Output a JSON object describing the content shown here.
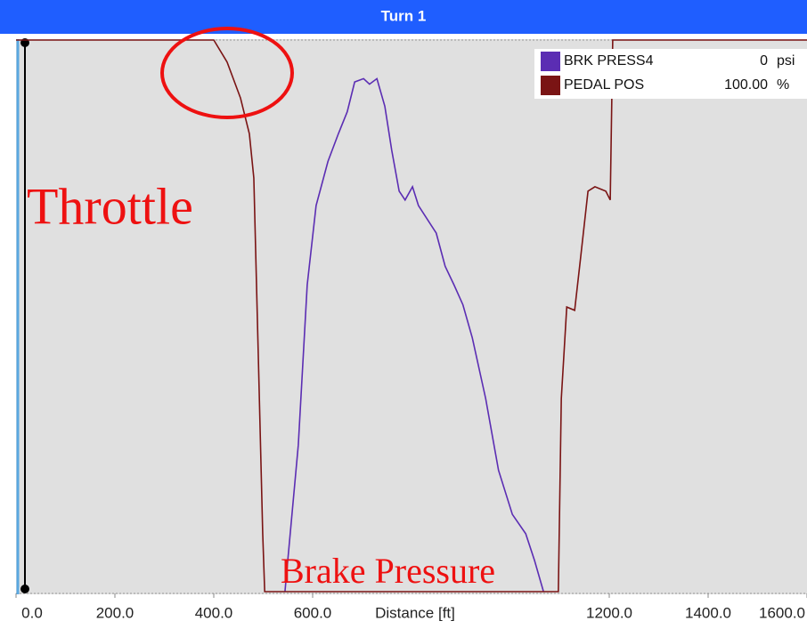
{
  "chart_data": {
    "type": "line",
    "title": "Turn 1",
    "x_label": "Distance [ft]",
    "xlim": [
      0,
      1600
    ],
    "xticks": [
      {
        "value": 0,
        "label": "0.0"
      },
      {
        "value": 200,
        "label": "200.0"
      },
      {
        "value": 400,
        "label": "400.0"
      },
      {
        "value": 600,
        "label": "600.0"
      },
      {
        "value": 1200,
        "label": "1200.0"
      },
      {
        "value": 1400,
        "label": "1400.0"
      },
      {
        "value": 1600,
        "label": "1600.0"
      }
    ],
    "ylim": [
      0,
      100
    ],
    "series": [
      {
        "name": "BRK PRESS4",
        "readout": "0",
        "unit": "psi",
        "color": "#5b2db3",
        "x": [
          544,
          548,
          571,
          589,
          607,
          631,
          652,
          670,
          685,
          703,
          715,
          730,
          746,
          760,
          775,
          787,
          802,
          814,
          850,
          868,
          886,
          904,
          923,
          950,
          976,
          1004,
          1031,
          1049,
          1067
        ],
        "values": [
          0,
          4,
          26.6,
          55.6,
          70,
          78,
          83,
          87,
          92.4,
          93,
          92,
          93,
          88,
          80,
          72.6,
          71,
          73.4,
          70,
          65,
          59,
          55.6,
          52,
          46,
          35,
          22,
          14,
          10.5,
          5.6,
          0
        ]
      },
      {
        "name": "PEDAL POS",
        "readout": "100.00",
        "unit": "%",
        "color": "#7a1414",
        "x": [
          0,
          400,
          427,
          454,
          472,
          481,
          490,
          499,
          503,
          1097,
          1103,
          1114,
          1130,
          1142,
          1157,
          1171,
          1193,
          1202,
          1207,
          1600
        ],
        "values": [
          100,
          100,
          96,
          89.5,
          83,
          75,
          43,
          10.5,
          0,
          0,
          35,
          51.6,
          51,
          60.5,
          72.6,
          73.4,
          72.6,
          71,
          100,
          100
        ]
      }
    ],
    "annotations": [
      "Throttle",
      "Brake Pressure"
    ]
  }
}
